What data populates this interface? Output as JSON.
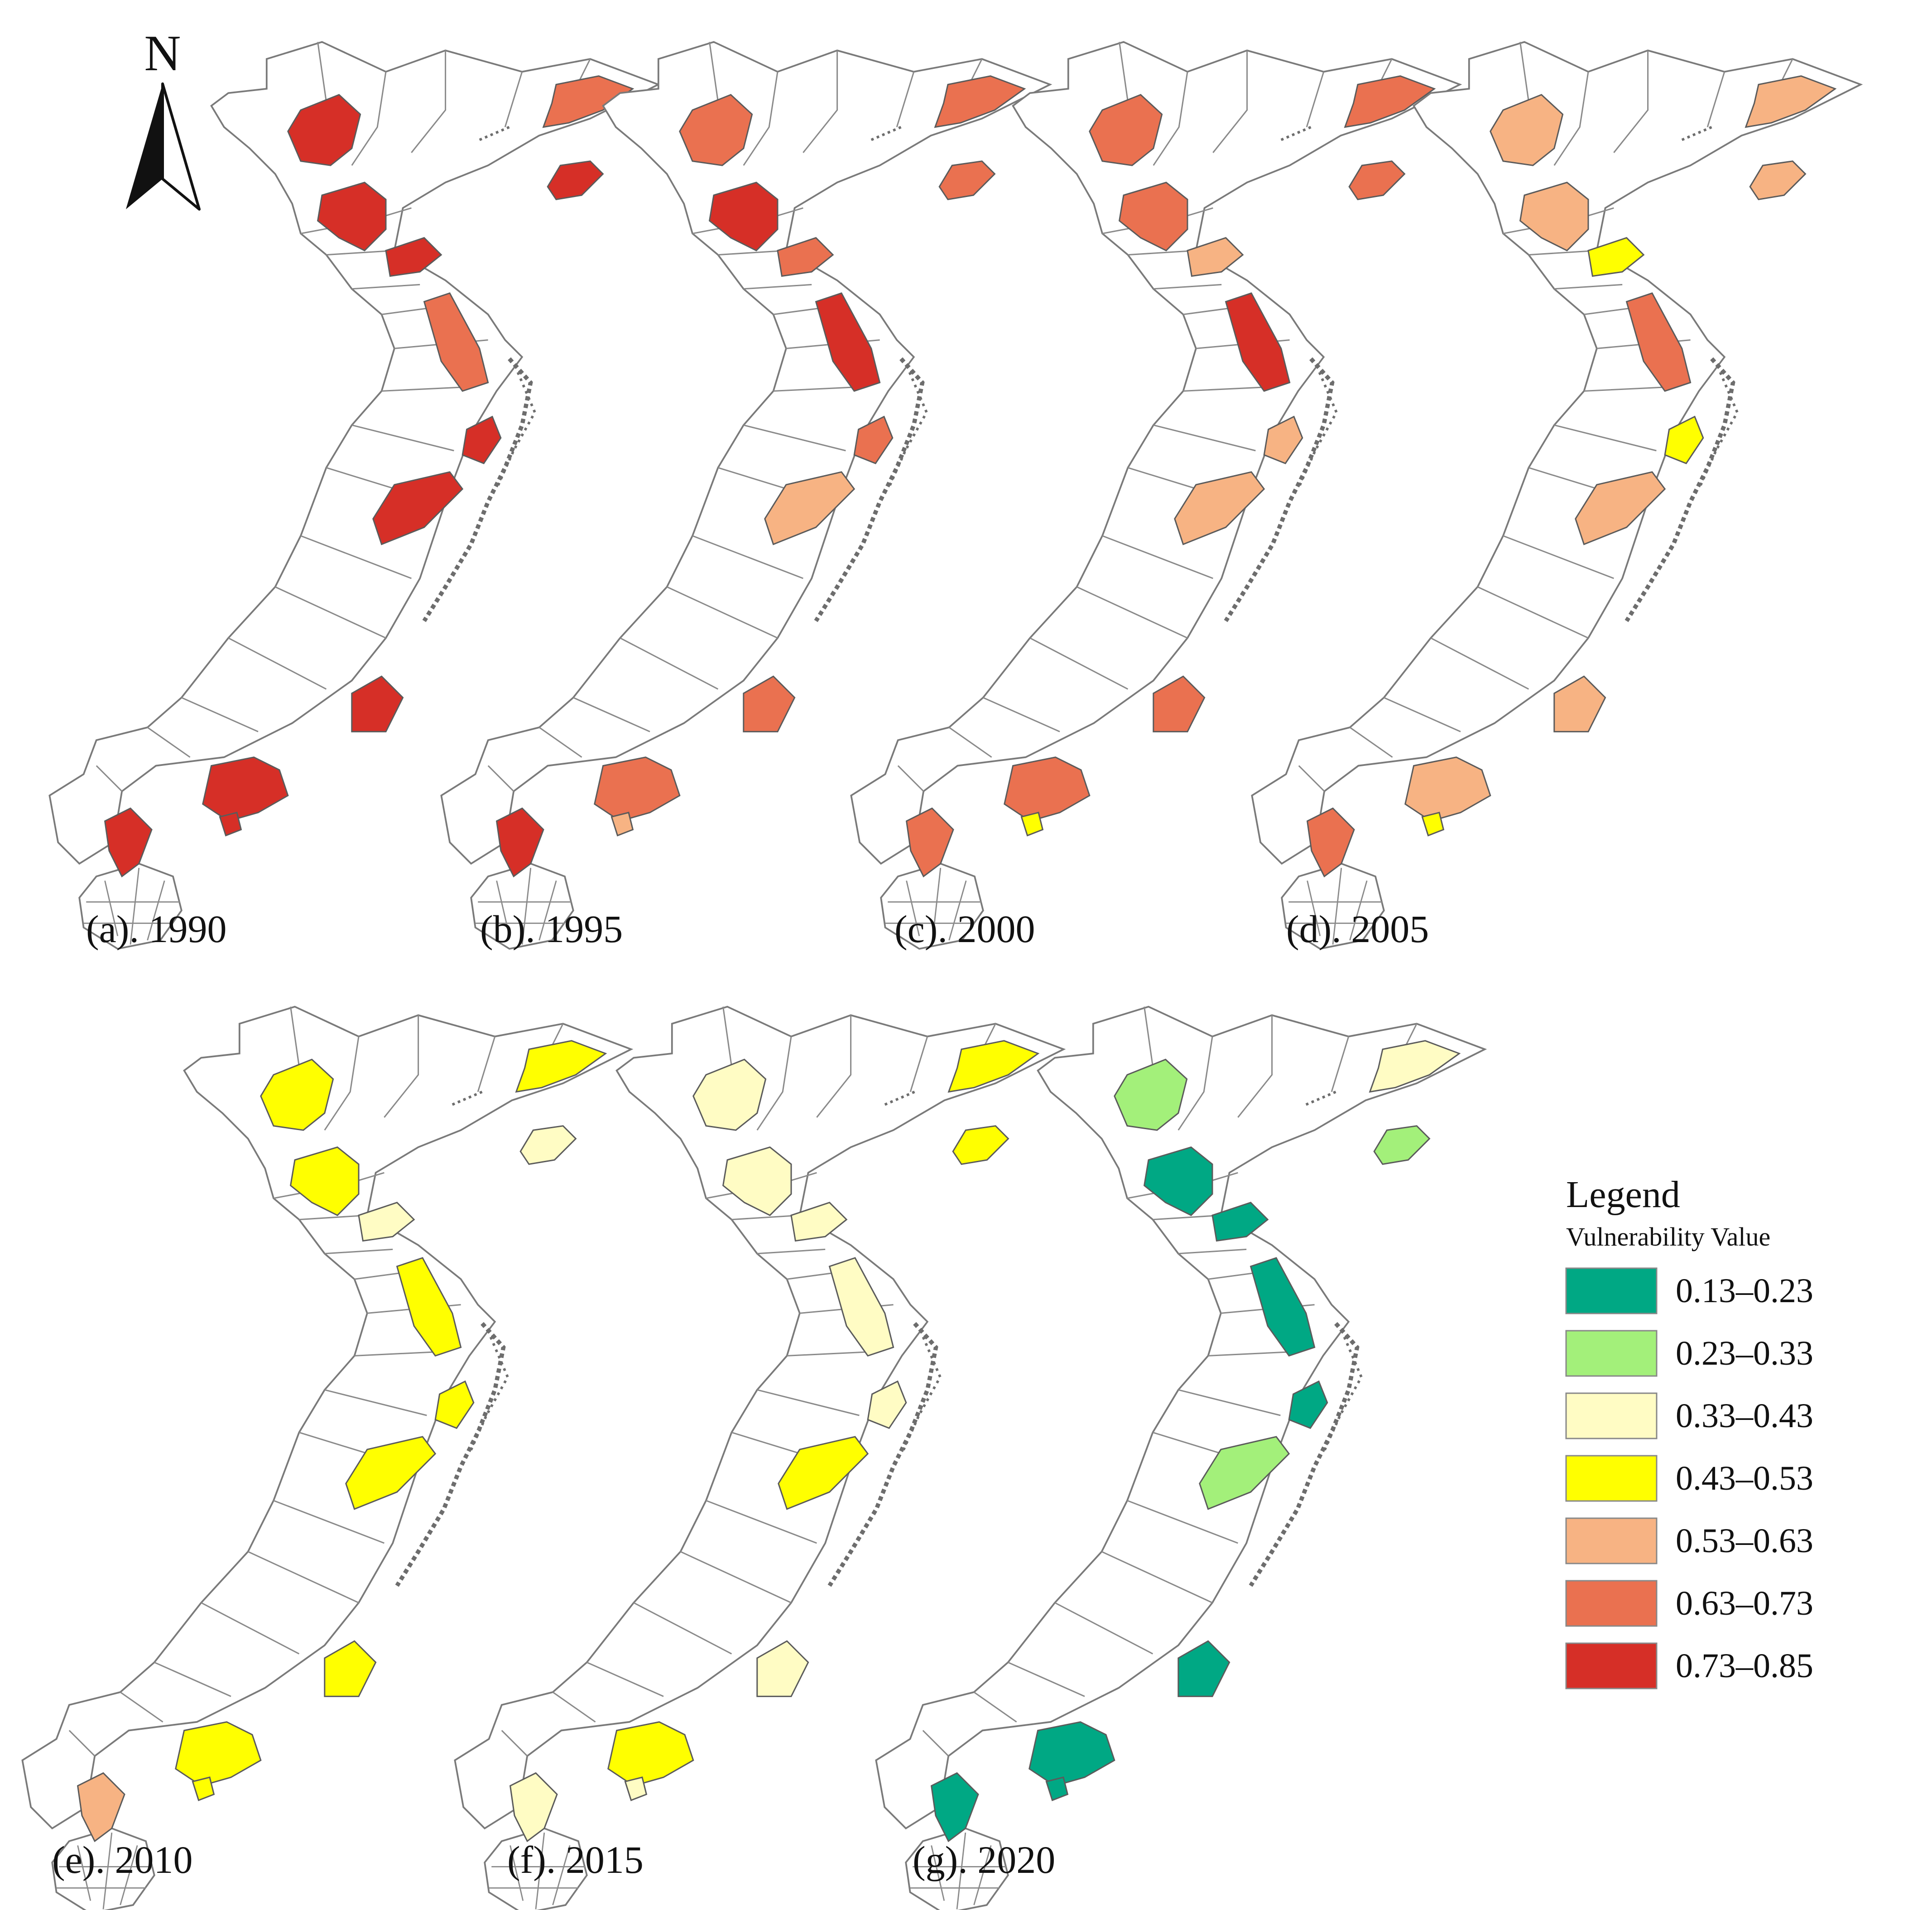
{
  "north_arrow": {
    "label": "N"
  },
  "panels": [
    {
      "label": "(a). 1990",
      "classes": {
        "p1": "0.73–0.85",
        "p2": "0.63–0.73",
        "p3": "0.73–0.85",
        "p4": "0.73–0.85",
        "p5": "0.73–0.85",
        "p6": "0.63–0.73",
        "p7": "0.73–0.85",
        "p8": "0.73–0.85",
        "p9": "0.73–0.85",
        "p10": "0.73–0.85",
        "p11": "0.73–0.85",
        "p12": "0.73–0.85"
      }
    },
    {
      "label": "(b). 1995",
      "classes": {
        "p1": "0.63–0.73",
        "p2": "0.63–0.73",
        "p3": "0.73–0.85",
        "p4": "0.63–0.73",
        "p5": "0.63–0.73",
        "p6": "0.73–0.85",
        "p7": "0.63–0.73",
        "p8": "0.53–0.63",
        "p9": "0.63–0.73",
        "p10": "0.63–0.73",
        "p11": "0.53–0.63",
        "p12": "0.73–0.85"
      }
    },
    {
      "label": "(c). 2000",
      "classes": {
        "p1": "0.63–0.73",
        "p2": "0.63–0.73",
        "p3": "0.63–0.73",
        "p4": "0.63–0.73",
        "p5": "0.53–0.63",
        "p6": "0.73–0.85",
        "p7": "0.53–0.63",
        "p8": "0.53–0.63",
        "p9": "0.63–0.73",
        "p10": "0.63–0.73",
        "p11": "0.43–0.53",
        "p12": "0.63–0.73"
      }
    },
    {
      "label": "(d). 2005",
      "classes": {
        "p1": "0.53–0.63",
        "p2": "0.53–0.63",
        "p3": "0.53–0.63",
        "p4": "0.53–0.63",
        "p5": "0.43–0.53",
        "p6": "0.63–0.73",
        "p7": "0.43–0.53",
        "p8": "0.53–0.63",
        "p9": "0.53–0.63",
        "p10": "0.53–0.63",
        "p11": "0.43–0.53",
        "p12": "0.63–0.73"
      }
    },
    {
      "label": "(e). 2010",
      "classes": {
        "p1": "0.43–0.53",
        "p2": "0.43–0.53",
        "p3": "0.43–0.53",
        "p4": "0.33–0.43",
        "p5": "0.33–0.43",
        "p6": "0.43–0.53",
        "p7": "0.43–0.53",
        "p8": "0.43–0.53",
        "p9": "0.43–0.53",
        "p10": "0.43–0.53",
        "p11": "0.43–0.53",
        "p12": "0.53–0.63"
      }
    },
    {
      "label": "(f). 2015",
      "classes": {
        "p1": "0.33–0.43",
        "p2": "0.43–0.53",
        "p3": "0.33–0.43",
        "p4": "0.43–0.53",
        "p5": "0.33–0.43",
        "p6": "0.33–0.43",
        "p7": "0.33–0.43",
        "p8": "0.43–0.53",
        "p9": "0.33–0.43",
        "p10": "0.43–0.53",
        "p11": "0.33–0.43",
        "p12": "0.33–0.43"
      }
    },
    {
      "label": "(g). 2020",
      "classes": {
        "p1": "0.23–0.33",
        "p2": "0.33–0.43",
        "p3": "0.13–0.23",
        "p4": "0.23–0.33",
        "p5": "0.13–0.23",
        "p6": "0.13–0.23",
        "p7": "0.13–0.23",
        "p8": "0.23–0.33",
        "p9": "0.13–0.23",
        "p10": "0.13–0.23",
        "p11": "0.13–0.23",
        "p12": "0.13–0.23"
      }
    }
  ],
  "legend": {
    "title": "Legend",
    "subtitle": "Vulnerability Value",
    "items": [
      {
        "label": "0.13–0.23",
        "color": "#00a884"
      },
      {
        "label": "0.23–0.33",
        "color": "#a3f07a"
      },
      {
        "label": "0.33–0.43",
        "color": "#fffcc4"
      },
      {
        "label": "0.43–0.53",
        "color": "#ffff00"
      },
      {
        "label": "0.53–0.63",
        "color": "#f7b383"
      },
      {
        "label": "0.63–0.73",
        "color": "#ea7150"
      },
      {
        "label": "0.73–0.85",
        "color": "#d62f27"
      }
    ]
  }
}
